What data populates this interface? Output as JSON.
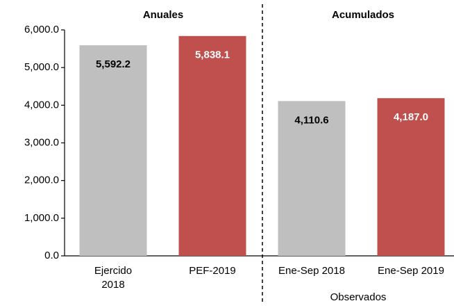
{
  "chart_data": {
    "type": "bar",
    "categories": [
      "Ejercido\n2018",
      "PEF-2019",
      "Ene-Sep 2018",
      "Ene-Sep 2019"
    ],
    "values": [
      5592.2,
      5838.1,
      4110.6,
      4187.0
    ],
    "value_labels": [
      "5,592.2",
      "5,838.1",
      "4,110.6",
      "4,187.0"
    ],
    "colors": [
      "#bfbfbf",
      "#c0504d",
      "#bfbfbf",
      "#c0504d"
    ],
    "ylim": [
      0,
      6000
    ],
    "yticks": [
      {
        "value": 0,
        "label": "0.0"
      },
      {
        "value": 1000,
        "label": "1,000.0"
      },
      {
        "value": 2000,
        "label": "2,000.0"
      },
      {
        "value": 3000,
        "label": "3,000.0"
      },
      {
        "value": 4000,
        "label": "4,000.0"
      },
      {
        "value": 5000,
        "label": "5,000.0"
      },
      {
        "value": 6000,
        "label": "6,000.0"
      }
    ],
    "annotations": [
      "Anuales",
      "Acumulados",
      "Observados"
    ]
  }
}
